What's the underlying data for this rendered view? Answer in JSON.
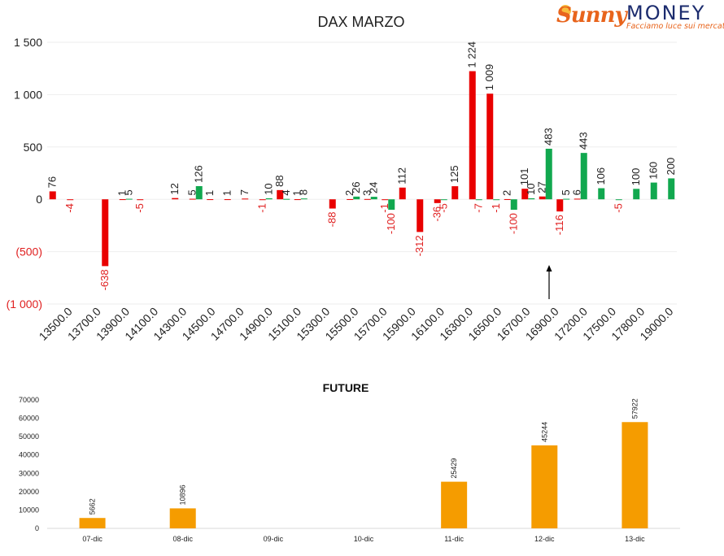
{
  "logo": {
    "brand_left": "Sunny",
    "brand_right": "MONEY",
    "tagline": "Facciamo luce sui mercati"
  },
  "colors": {
    "put": "#e90000",
    "call": "#11a84f",
    "future": "#f59c00",
    "text_negative": "#e02020"
  },
  "chart_data": [
    {
      "type": "bar",
      "title": "DAX MARZO",
      "ylim": [
        -1000,
        1500
      ],
      "yticks": [
        1500,
        1000,
        500,
        0,
        -500,
        -1000
      ],
      "ytick_labels": [
        "1 500",
        "1 000",
        "500",
        "0",
        "(500)",
        "(1 000)"
      ],
      "xtick_labels": [
        "13500.0",
        "13700.0",
        "13900.0",
        "14100.0",
        "14300.0",
        "14500.0",
        "14700.0",
        "14900.0",
        "15100.0",
        "15300.0",
        "15500.0",
        "15700.0",
        "15900.0",
        "16100.0",
        "16300.0",
        "16500.0",
        "16700.0",
        "16900.0",
        "17200.0",
        "17500.0",
        "17800.0",
        "19000.0"
      ],
      "series_colors": [
        "#e90000",
        "#11a84f"
      ],
      "bars": [
        {
          "slot": 0,
          "series": 0,
          "value": 76,
          "label": "76"
        },
        {
          "slot": 1,
          "series": 0,
          "value": -4,
          "label": "-4"
        },
        {
          "slot": 3,
          "series": 0,
          "value": -638,
          "label": "-638"
        },
        {
          "slot": 4,
          "series": 0,
          "value": 1,
          "label": "1"
        },
        {
          "slot": 4,
          "series": 1,
          "value": 5,
          "label": "5"
        },
        {
          "slot": 5,
          "series": 0,
          "value": -5,
          "label": "-5"
        },
        {
          "slot": 7,
          "series": 0,
          "value": 12,
          "label": "12"
        },
        {
          "slot": 8,
          "series": 0,
          "value": 5,
          "label": "5"
        },
        {
          "slot": 8,
          "series": 1,
          "value": 126,
          "label": "126"
        },
        {
          "slot": 9,
          "series": 0,
          "value": 1,
          "label": "1"
        },
        {
          "slot": 10,
          "series": 0,
          "value": 1,
          "label": "1"
        },
        {
          "slot": 11,
          "series": 0,
          "value": 7,
          "label": "7"
        },
        {
          "slot": 12,
          "series": 0,
          "value": -1,
          "label": "-1"
        },
        {
          "slot": 12,
          "series": 1,
          "value": 10,
          "label": "10"
        },
        {
          "slot": 13,
          "series": 0,
          "value": 88,
          "label": "88"
        },
        {
          "slot": 13,
          "series": 1,
          "value": 4,
          "label": "4"
        },
        {
          "slot": 14,
          "series": 0,
          "value": 1,
          "label": "1"
        },
        {
          "slot": 14,
          "series": 1,
          "value": 8,
          "label": "8"
        },
        {
          "slot": 16,
          "series": 0,
          "value": -88,
          "label": "-88"
        },
        {
          "slot": 17,
          "series": 0,
          "value": 2,
          "label": "2"
        },
        {
          "slot": 17,
          "series": 1,
          "value": 26,
          "label": "26"
        },
        {
          "slot": 18,
          "series": 0,
          "value": 3,
          "label": "3"
        },
        {
          "slot": 18,
          "series": 1,
          "value": 24,
          "label": "24"
        },
        {
          "slot": 19,
          "series": 0,
          "value": -1,
          "label": "-1"
        },
        {
          "slot": 19,
          "series": 1,
          "value": -100,
          "label": "-100"
        },
        {
          "slot": 20,
          "series": 0,
          "value": 112,
          "label": "112"
        },
        {
          "slot": 21,
          "series": 0,
          "value": -312,
          "label": "-312"
        },
        {
          "slot": 22,
          "series": 0,
          "value": -36,
          "label": "-36"
        },
        {
          "slot": 22,
          "series": 1,
          "value": -5,
          "label": "-5"
        },
        {
          "slot": 23,
          "series": 0,
          "value": 125,
          "label": "125"
        },
        {
          "slot": 24,
          "series": 0,
          "value": 1224,
          "label": "1 224"
        },
        {
          "slot": 24,
          "series": 1,
          "value": -7,
          "label": "-7"
        },
        {
          "slot": 25,
          "series": 0,
          "value": 1009,
          "label": "1 009"
        },
        {
          "slot": 25,
          "series": 1,
          "value": -1,
          "label": "-1"
        },
        {
          "slot": 26,
          "series": 0,
          "value": 2,
          "label": "2"
        },
        {
          "slot": 26,
          "series": 1,
          "value": -100,
          "label": "-100"
        },
        {
          "slot": 27,
          "series": 0,
          "value": 101,
          "label": "101"
        },
        {
          "slot": 27,
          "series": 1,
          "value": 10,
          "label": "10"
        },
        {
          "slot": 28,
          "series": 0,
          "value": 27,
          "label": "27"
        },
        {
          "slot": 28,
          "series": 1,
          "value": 483,
          "label": "483"
        },
        {
          "slot": 29,
          "series": 0,
          "value": -116,
          "label": "-116"
        },
        {
          "slot": 29,
          "series": 1,
          "value": 5,
          "label": "5"
        },
        {
          "slot": 30,
          "series": 0,
          "value": 6,
          "label": "6"
        },
        {
          "slot": 30,
          "series": 1,
          "value": 443,
          "label": "443"
        },
        {
          "slot": 31,
          "series": 1,
          "value": 106,
          "label": "106"
        },
        {
          "slot": 32,
          "series": 1,
          "value": -5,
          "label": "-5"
        },
        {
          "slot": 33,
          "series": 1,
          "value": 100,
          "label": "100"
        },
        {
          "slot": 34,
          "series": 1,
          "value": 160,
          "label": "160"
        },
        {
          "slot": 35,
          "series": 1,
          "value": 200,
          "label": "200"
        }
      ],
      "annotation": "arrow pointing up near 16900.0"
    },
    {
      "type": "bar",
      "title": "FUTURE",
      "categories": [
        "07-dic",
        "08-dic",
        "09-dic",
        "10-dic",
        "11-dic",
        "12-dic",
        "13-dic"
      ],
      "values": [
        5662,
        10896,
        null,
        null,
        25429,
        45244,
        57922
      ],
      "value_labels": [
        "5662",
        "10896",
        "",
        "",
        "25429",
        "45244",
        "57922"
      ],
      "ylim": [
        0,
        70000
      ],
      "yticks": [
        0,
        10000,
        20000,
        30000,
        40000,
        50000,
        60000,
        70000
      ],
      "ytick_labels": [
        "0",
        "10000",
        "20000",
        "30000",
        "40000",
        "50000",
        "60000",
        "70000"
      ]
    }
  ]
}
